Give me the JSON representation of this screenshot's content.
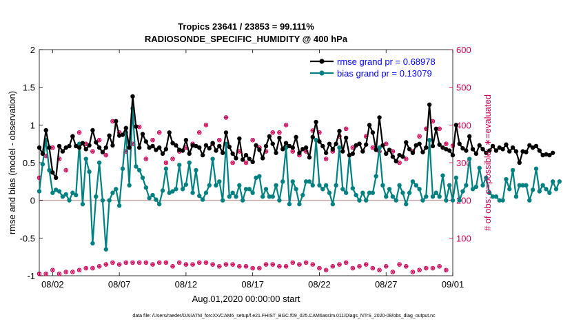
{
  "chart_data": {
    "type": "line",
    "title_line1": "Tropics 23641 / 23853 = 99.111%",
    "title_line2": "RADIOSONDE_SPECIFIC_HUMIDITY @ 400 hPa",
    "xlabel": "Aug.01,2020 00:00:00 start",
    "ylabel_left": "rmse and bias (model - observation)",
    "ylabel_right": "# of obs: o=possible; ∗=evaluated",
    "xlim": [
      0,
      31
    ],
    "ylim_left": [
      -1,
      2
    ],
    "ylim_right": [
      0,
      600
    ],
    "x_ticks": [
      {
        "value": 1,
        "label": "08/02"
      },
      {
        "value": 6,
        "label": "08/07"
      },
      {
        "value": 11,
        "label": "08/12"
      },
      {
        "value": 16,
        "label": "08/17"
      },
      {
        "value": 21,
        "label": "08/22"
      },
      {
        "value": 26,
        "label": "08/27"
      },
      {
        "value": 31,
        "label": "09/01"
      }
    ],
    "y_ticks_left": [
      {
        "value": -1,
        "label": "-1"
      },
      {
        "value": -0.5,
        "label": "-0.5"
      },
      {
        "value": 0,
        "label": "0"
      },
      {
        "value": 0.5,
        "label": "0.5"
      },
      {
        "value": 1,
        "label": "1"
      },
      {
        "value": 1.5,
        "label": "1.5"
      },
      {
        "value": 2,
        "label": "2"
      }
    ],
    "y_ticks_right": [
      {
        "value": 100,
        "label": "100"
      },
      {
        "value": 200,
        "label": "200"
      },
      {
        "value": 300,
        "label": "300"
      },
      {
        "value": 400,
        "label": "400"
      },
      {
        "value": 500,
        "label": "500"
      },
      {
        "value": 600,
        "label": "600"
      }
    ],
    "legend": {
      "position": "top-right",
      "rmse_label": "rmse grand pr = 0.68978",
      "bias_label": "bias grand pr = 0.13079"
    },
    "colors": {
      "rmse": "#000000",
      "bias": "#008080",
      "obs": "#cc0055",
      "zero_line": "#c8a8a8",
      "legend_text": "#0000ff"
    },
    "footer": "data file: /Users/raeder/DAI/ATM_forcXX/CAM6_setup/f.e21.FHIST_BGC.f09_025.CAM6assim.011/Diags_NTrS_2020-08/obs_diag_output.nc",
    "series": [
      {
        "name": "rmse",
        "step": 0.25,
        "values": [
          0.7,
          0.62,
          0.93,
          0.7,
          0.37,
          0.3,
          0.72,
          0.65,
          0.7,
          0.72,
          0.85,
          0.72,
          0.7,
          0.76,
          0.68,
          0.73,
          0.93,
          0.77,
          0.7,
          0.64,
          0.7,
          0.86,
          0.73,
          1.05,
          0.86,
          0.87,
          0.96,
          0.7,
          1.38,
          0.98,
          0.7,
          0.88,
          0.78,
          0.7,
          0.72,
          0.67,
          0.7,
          0.62,
          0.68,
          0.9,
          0.76,
          0.73,
          0.67,
          0.66,
          0.8,
          0.62,
          0.73,
          0.72,
          0.7,
          0.6,
          0.73,
          0.69,
          0.76,
          0.66,
          0.72,
          0.63,
          0.9,
          0.71,
          0.62,
          0.56,
          0.82,
          0.54,
          0.6,
          0.55,
          0.51,
          0.73,
          0.67,
          0.56,
          0.72,
          0.85,
          0.75,
          0.63,
          0.83,
          0.68,
          0.76,
          0.72,
          0.7,
          0.84,
          0.63,
          0.68,
          0.7,
          0.57,
          0.84,
          1.04,
          0.78,
          0.72,
          0.63,
          0.75,
          0.68,
          0.75,
          0.92,
          0.65,
          0.83,
          0.6,
          0.62,
          0.73,
          0.75,
          0.65,
          0.74,
          1.0,
          0.9,
          0.67,
          1.1,
          0.73,
          0.62,
          0.67,
          0.58,
          0.52,
          0.6,
          0.58,
          0.77,
          0.68,
          0.63,
          0.73,
          0.75,
          0.64,
          0.7,
          1.27,
          0.72,
          0.95,
          0.74,
          0.7,
          0.68,
          0.66,
          0.6,
          1.0,
          0.75,
          0.69,
          0.66,
          0.85,
          0.68,
          0.62,
          0.73,
          0.68,
          0.63,
          0.66,
          0.72,
          0.66,
          0.7,
          0.68,
          0.74,
          0.65,
          0.7,
          0.65,
          0.5,
          0.65,
          0.64,
          0.73,
          0.7,
          0.72,
          0.66,
          0.6,
          0.61,
          0.6,
          0.63
        ]
      },
      {
        "name": "bias",
        "step": 0.25,
        "values": [
          0.12,
          0.48,
          0.8,
          0.4,
          0.1,
          0.14,
          0.12,
          0.05,
          0.08,
          0.0,
          0.1,
          0.07,
          0.75,
          -0.05,
          0.55,
          0.38,
          -0.57,
          0.05,
          0.5,
          0.0,
          -0.65,
          0.0,
          0.1,
          0.15,
          -0.07,
          0.42,
          0.9,
          0.2,
          1.22,
          0.45,
          0.4,
          0.3,
          0.17,
          0.03,
          0.07,
          0.01,
          -0.05,
          0.13,
          0.42,
          0.1,
          0.12,
          0.15,
          0.47,
          0.15,
          0.21,
          0.5,
          0.1,
          0.4,
          0.06,
          0.01,
          0.1,
          0.2,
          0.55,
          0.2,
          0.25,
          0.0,
          0.75,
          0.05,
          0.1,
          0.05,
          0.2,
          0.0,
          0.15,
          0.15,
          0.1,
          0.3,
          0.32,
          0.05,
          0.15,
          0.05,
          0.05,
          0.2,
          0.0,
          0.25,
          0.7,
          -0.05,
          0.25,
          0.15,
          -0.05,
          0.07,
          0.25,
          0.25,
          0.2,
          0.8,
          0.2,
          0.15,
          0.2,
          0.1,
          -0.05,
          0.2,
          0.7,
          0.15,
          0.1,
          0.6,
          0.16,
          0.07,
          0.0,
          0.1,
          0.0,
          0.1,
          0.1,
          0.32,
          0.7,
          0.2,
          0.05,
          0.15,
          0.05,
          0.0,
          0.2,
          0.1,
          -0.05,
          0.1,
          0.25,
          0.2,
          0.15,
          0.0,
          0.05,
          0.8,
          0.05,
          0.1,
          0.05,
          0.33,
          0.0,
          0.2,
          0.0,
          0.3,
          0.0,
          0.12,
          0.2,
          0.55,
          0.15,
          0.18,
          0.43,
          0.2,
          0.3,
          0.1,
          0.05,
          0.05,
          0.0,
          0.0,
          0.28,
          0.15,
          0.4,
          0.05,
          0.2,
          0.2,
          0.2,
          0.0,
          0.14,
          0.42,
          0.12,
          0.2,
          0.15,
          0.1,
          0.25,
          0.15,
          0.25
        ]
      },
      {
        "name": "obs_possible",
        "axis": "right",
        "step": 0.5,
        "values": [
          5,
          5,
          15,
          5,
          10,
          10,
          15,
          20,
          20,
          25,
          30,
          35,
          30,
          35,
          35,
          35,
          35,
          30,
          35,
          35,
          25,
          35,
          30,
          30,
          35,
          35,
          30,
          25,
          30,
          30,
          25,
          25,
          20,
          20,
          30,
          30,
          25,
          25,
          35,
          30,
          35,
          30,
          20,
          15,
          25,
          30,
          35,
          20,
          25,
          30,
          20,
          15,
          25,
          10,
          30,
          25,
          10,
          15,
          20,
          20,
          25,
          15
        ]
      },
      {
        "name": "obs_evaluated",
        "axis": "right",
        "step": 0.5,
        "values": [
          5,
          5,
          15,
          5,
          10,
          10,
          15,
          20,
          20,
          25,
          30,
          35,
          30,
          35,
          35,
          35,
          35,
          30,
          35,
          35,
          25,
          35,
          30,
          30,
          35,
          35,
          30,
          25,
          30,
          30,
          25,
          25,
          20,
          20,
          30,
          30,
          25,
          25,
          35,
          30,
          35,
          30,
          20,
          15,
          25,
          30,
          35,
          20,
          25,
          30,
          20,
          15,
          25,
          10,
          30,
          25,
          10,
          15,
          20,
          20,
          25,
          15
        ]
      },
      {
        "name": "obs_possible_upper",
        "axis": "right",
        "step": 0.5,
        "values": [
          260,
          318,
          340,
          310,
          280,
          370,
          380,
          350,
          330,
          360,
          320,
          410,
          380,
          330,
          350,
          395,
          310,
          360,
          380,
          300,
          310,
          330,
          340,
          350,
          380,
          400,
          350,
          360,
          420,
          300,
          330,
          300,
          360,
          340,
          330,
          380,
          380,
          400,
          330,
          320,
          330,
          385,
          380,
          310,
          330,
          370,
          390,
          340,
          350,
          370,
          340,
          330,
          350,
          330,
          300,
          310,
          330,
          370,
          390,
          410,
          390,
          350,
          345,
          315,
          320,
          330,
          370,
          400,
          400,
          500,
          340,
          330
        ]
      },
      {
        "name": "obs_evaluated_upper",
        "axis": "right",
        "step": 0.5,
        "values": [
          260,
          318,
          340,
          310,
          280,
          370,
          380,
          350,
          330,
          360,
          320,
          410,
          380,
          330,
          350,
          395,
          310,
          360,
          380,
          300,
          310,
          330,
          340,
          350,
          380,
          400,
          350,
          360,
          420,
          300,
          330,
          300,
          360,
          340,
          330,
          380,
          380,
          400,
          330,
          320,
          330,
          385,
          380,
          310,
          330,
          370,
          390,
          340,
          350,
          370,
          340,
          330,
          350,
          330,
          300,
          310,
          330,
          370,
          390,
          410,
          390,
          350,
          345,
          315,
          320,
          330,
          370,
          390,
          400,
          500,
          340,
          330
        ]
      }
    ]
  }
}
